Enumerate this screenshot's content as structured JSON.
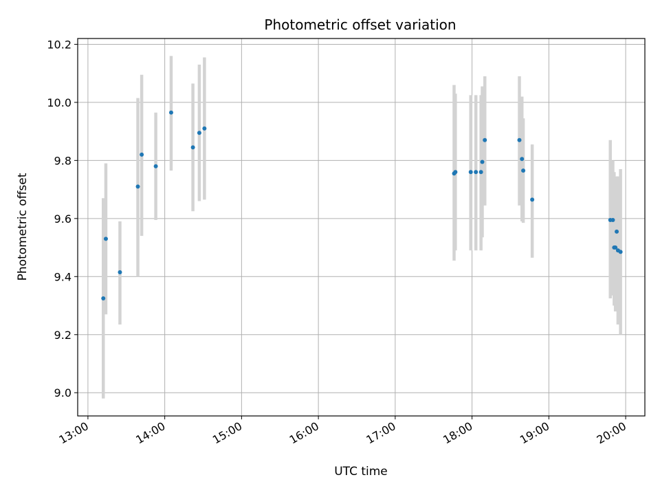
{
  "chart_data": {
    "type": "scatter",
    "title": "Photometric offset variation",
    "xlabel": "UTC time",
    "ylabel": "Photometric offset",
    "x_ticks": [
      "13:00",
      "14:00",
      "15:00",
      "16:00",
      "17:00",
      "18:00",
      "19:00",
      "20:00"
    ],
    "y_ticks": [
      "9.0",
      "9.2",
      "9.4",
      "9.6",
      "9.8",
      "10.0",
      "10.2"
    ],
    "xlim": [
      "12:52",
      "20:15"
    ],
    "ylim": [
      8.92,
      10.22
    ],
    "grid": true,
    "point_color": "#1f77b4",
    "errorbar_color": "#d3d3d3",
    "series": [
      {
        "points": [
          {
            "x": "13:12",
            "y": 9.325,
            "low": 8.98,
            "high": 9.67
          },
          {
            "x": "13:14",
            "y": 9.53,
            "low": 9.27,
            "high": 9.79
          },
          {
            "x": "13:25",
            "y": 9.415,
            "low": 9.235,
            "high": 9.59
          },
          {
            "x": "13:39",
            "y": 9.71,
            "low": 9.4,
            "high": 10.015
          },
          {
            "x": "13:42",
            "y": 9.82,
            "low": 9.54,
            "high": 10.095
          },
          {
            "x": "13:53",
            "y": 9.78,
            "low": 9.595,
            "high": 9.965
          },
          {
            "x": "14:05",
            "y": 9.965,
            "low": 9.765,
            "high": 10.16
          },
          {
            "x": "14:22",
            "y": 9.845,
            "low": 9.625,
            "high": 10.065
          },
          {
            "x": "14:27",
            "y": 9.895,
            "low": 9.66,
            "high": 10.13
          },
          {
            "x": "14:31",
            "y": 9.91,
            "low": 9.665,
            "high": 10.155
          },
          {
            "x": "17:46",
            "y": 9.755,
            "low": 9.455,
            "high": 10.06
          },
          {
            "x": "17:47",
            "y": 9.76,
            "low": 9.49,
            "high": 10.03
          },
          {
            "x": "17:59",
            "y": 9.76,
            "low": 9.49,
            "high": 10.025
          },
          {
            "x": "18:03",
            "y": 9.76,
            "low": 9.49,
            "high": 10.025
          },
          {
            "x": "18:07",
            "y": 9.76,
            "low": 9.49,
            "high": 10.025
          },
          {
            "x": "18:08",
            "y": 9.795,
            "low": 9.535,
            "high": 10.055
          },
          {
            "x": "18:10",
            "y": 9.87,
            "low": 9.645,
            "high": 10.09
          },
          {
            "x": "18:37",
            "y": 9.87,
            "low": 9.645,
            "high": 10.09
          },
          {
            "x": "18:39",
            "y": 9.805,
            "low": 9.59,
            "high": 10.02
          },
          {
            "x": "18:40",
            "y": 9.765,
            "low": 9.585,
            "high": 9.945
          },
          {
            "x": "18:47",
            "y": 9.665,
            "low": 9.465,
            "high": 9.855
          },
          {
            "x": "19:48",
            "y": 9.595,
            "low": 9.325,
            "high": 9.87
          },
          {
            "x": "19:50",
            "y": 9.595,
            "low": 9.335,
            "high": 9.8
          },
          {
            "x": "19:51",
            "y": 9.5,
            "low": 9.3,
            "high": 9.76
          },
          {
            "x": "19:52",
            "y": 9.5,
            "low": 9.28,
            "high": 9.72
          },
          {
            "x": "19:53",
            "y": 9.555,
            "low": 9.29,
            "high": 9.745
          },
          {
            "x": "19:54",
            "y": 9.49,
            "low": 9.235,
            "high": 9.745
          },
          {
            "x": "19:56",
            "y": 9.485,
            "low": 9.2,
            "high": 9.77
          }
        ]
      }
    ]
  }
}
